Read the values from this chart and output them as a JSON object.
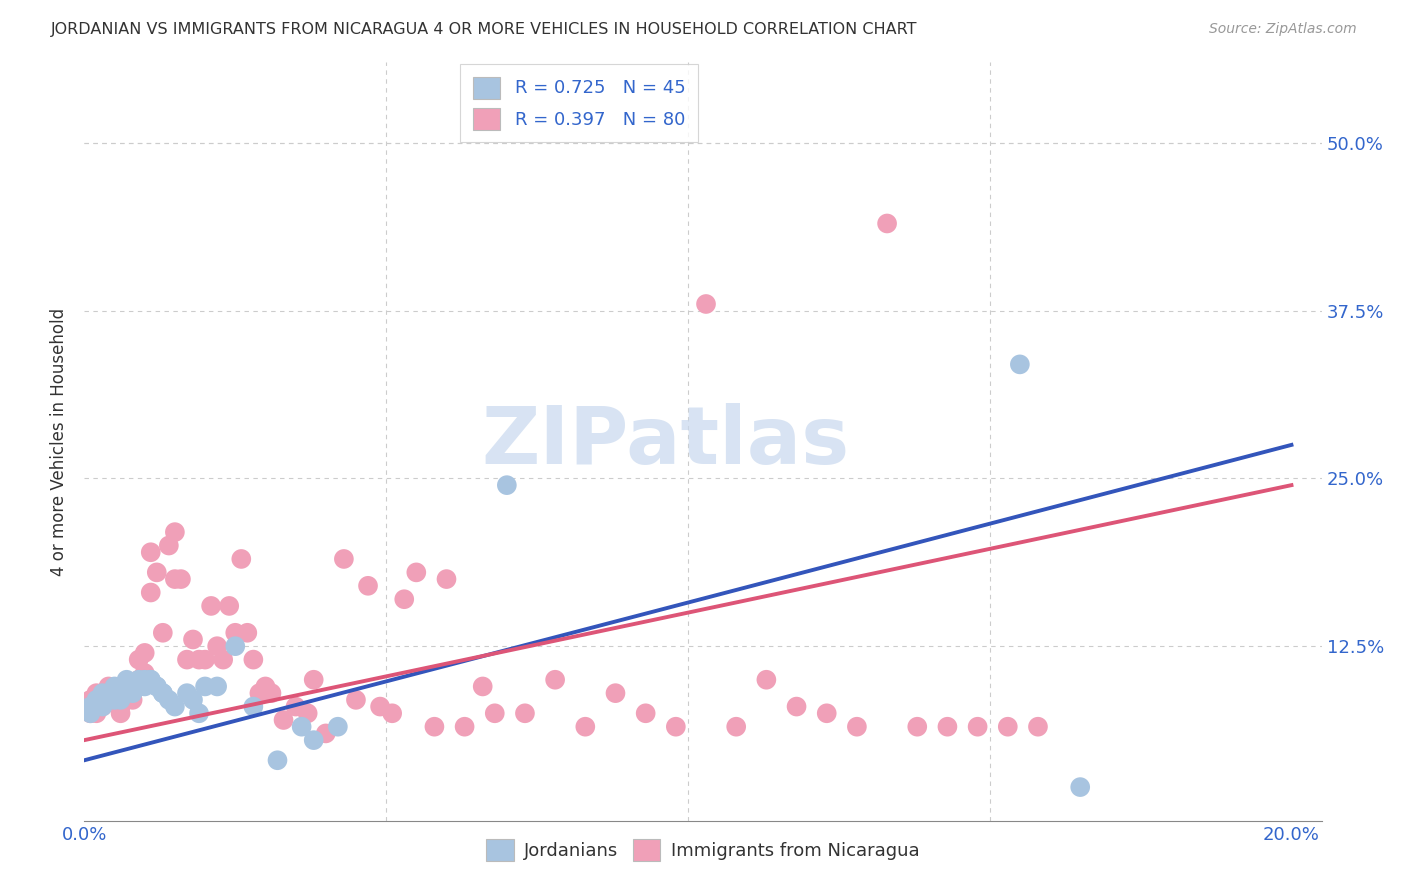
{
  "title": "JORDANIAN VS IMMIGRANTS FROM NICARAGUA 4 OR MORE VEHICLES IN HOUSEHOLD CORRELATION CHART",
  "source": "Source: ZipAtlas.com",
  "ylabel": "4 or more Vehicles in Household",
  "xlim": [
    0.0,
    0.205
  ],
  "ylim": [
    -0.005,
    0.56
  ],
  "xtick_pos": [
    0.0,
    0.05,
    0.1,
    0.15,
    0.2
  ],
  "xtick_labels": [
    "0.0%",
    "",
    "",
    "",
    "20.0%"
  ],
  "ytick_pos": [
    0.0,
    0.125,
    0.25,
    0.375,
    0.5
  ],
  "ytick_labels_right": [
    "",
    "12.5%",
    "25.0%",
    "37.5%",
    "50.0%"
  ],
  "legend_r_color": "#3366cc",
  "jordanian_color": "#a8c4e0",
  "nicaragua_color": "#f0a0b8",
  "jordanian_line_color": "#3355bb",
  "nicaragua_line_color": "#dd5577",
  "watermark_text": "ZIPatlas",
  "watermark_color": "#c8d8ee",
  "background_color": "#ffffff",
  "grid_color": "#cccccc",
  "jordanian_line": {
    "x0": 0.0,
    "y0": 0.04,
    "x1": 0.2,
    "y1": 0.275
  },
  "nicaragua_line": {
    "x0": 0.0,
    "y0": 0.055,
    "x1": 0.2,
    "y1": 0.245
  },
  "jordanian_points": [
    [
      0.001,
      0.075
    ],
    [
      0.001,
      0.08
    ],
    [
      0.002,
      0.08
    ],
    [
      0.002,
      0.085
    ],
    [
      0.003,
      0.09
    ],
    [
      0.003,
      0.085
    ],
    [
      0.003,
      0.08
    ],
    [
      0.004,
      0.085
    ],
    [
      0.004,
      0.09
    ],
    [
      0.005,
      0.09
    ],
    [
      0.005,
      0.085
    ],
    [
      0.005,
      0.095
    ],
    [
      0.006,
      0.085
    ],
    [
      0.006,
      0.09
    ],
    [
      0.007,
      0.09
    ],
    [
      0.007,
      0.095
    ],
    [
      0.007,
      0.1
    ],
    [
      0.008,
      0.095
    ],
    [
      0.008,
      0.09
    ],
    [
      0.009,
      0.095
    ],
    [
      0.009,
      0.1
    ],
    [
      0.01,
      0.1
    ],
    [
      0.01,
      0.095
    ],
    [
      0.011,
      0.1
    ],
    [
      0.011,
      0.1
    ],
    [
      0.012,
      0.095
    ],
    [
      0.012,
      0.095
    ],
    [
      0.013,
      0.09
    ],
    [
      0.013,
      0.09
    ],
    [
      0.014,
      0.085
    ],
    [
      0.015,
      0.08
    ],
    [
      0.017,
      0.09
    ],
    [
      0.018,
      0.085
    ],
    [
      0.019,
      0.075
    ],
    [
      0.02,
      0.095
    ],
    [
      0.022,
      0.095
    ],
    [
      0.025,
      0.125
    ],
    [
      0.028,
      0.08
    ],
    [
      0.032,
      0.04
    ],
    [
      0.036,
      0.065
    ],
    [
      0.038,
      0.055
    ],
    [
      0.042,
      0.065
    ],
    [
      0.07,
      0.245
    ],
    [
      0.155,
      0.335
    ],
    [
      0.165,
      0.02
    ]
  ],
  "nicaragua_points": [
    [
      0.001,
      0.075
    ],
    [
      0.001,
      0.085
    ],
    [
      0.002,
      0.08
    ],
    [
      0.002,
      0.09
    ],
    [
      0.002,
      0.075
    ],
    [
      0.003,
      0.085
    ],
    [
      0.003,
      0.09
    ],
    [
      0.003,
      0.08
    ],
    [
      0.004,
      0.09
    ],
    [
      0.004,
      0.095
    ],
    [
      0.005,
      0.085
    ],
    [
      0.005,
      0.09
    ],
    [
      0.006,
      0.08
    ],
    [
      0.006,
      0.075
    ],
    [
      0.007,
      0.085
    ],
    [
      0.007,
      0.09
    ],
    [
      0.008,
      0.095
    ],
    [
      0.008,
      0.085
    ],
    [
      0.009,
      0.115
    ],
    [
      0.009,
      0.1
    ],
    [
      0.01,
      0.12
    ],
    [
      0.01,
      0.105
    ],
    [
      0.011,
      0.195
    ],
    [
      0.011,
      0.165
    ],
    [
      0.012,
      0.18
    ],
    [
      0.013,
      0.135
    ],
    [
      0.014,
      0.2
    ],
    [
      0.015,
      0.21
    ],
    [
      0.015,
      0.175
    ],
    [
      0.016,
      0.175
    ],
    [
      0.017,
      0.115
    ],
    [
      0.018,
      0.13
    ],
    [
      0.019,
      0.115
    ],
    [
      0.02,
      0.115
    ],
    [
      0.021,
      0.155
    ],
    [
      0.022,
      0.125
    ],
    [
      0.023,
      0.115
    ],
    [
      0.024,
      0.155
    ],
    [
      0.025,
      0.135
    ],
    [
      0.026,
      0.19
    ],
    [
      0.027,
      0.135
    ],
    [
      0.028,
      0.115
    ],
    [
      0.029,
      0.09
    ],
    [
      0.03,
      0.095
    ],
    [
      0.031,
      0.09
    ],
    [
      0.033,
      0.07
    ],
    [
      0.035,
      0.08
    ],
    [
      0.037,
      0.075
    ],
    [
      0.038,
      0.1
    ],
    [
      0.04,
      0.06
    ],
    [
      0.043,
      0.19
    ],
    [
      0.045,
      0.085
    ],
    [
      0.047,
      0.17
    ],
    [
      0.049,
      0.08
    ],
    [
      0.051,
      0.075
    ],
    [
      0.053,
      0.16
    ],
    [
      0.055,
      0.18
    ],
    [
      0.058,
      0.065
    ],
    [
      0.06,
      0.175
    ],
    [
      0.063,
      0.065
    ],
    [
      0.066,
      0.095
    ],
    [
      0.068,
      0.075
    ],
    [
      0.073,
      0.075
    ],
    [
      0.078,
      0.1
    ],
    [
      0.083,
      0.065
    ],
    [
      0.088,
      0.09
    ],
    [
      0.093,
      0.075
    ],
    [
      0.098,
      0.065
    ],
    [
      0.103,
      0.38
    ],
    [
      0.108,
      0.065
    ],
    [
      0.113,
      0.1
    ],
    [
      0.118,
      0.08
    ],
    [
      0.123,
      0.075
    ],
    [
      0.128,
      0.065
    ],
    [
      0.133,
      0.44
    ],
    [
      0.138,
      0.065
    ],
    [
      0.143,
      0.065
    ],
    [
      0.148,
      0.065
    ],
    [
      0.153,
      0.065
    ],
    [
      0.158,
      0.065
    ]
  ]
}
